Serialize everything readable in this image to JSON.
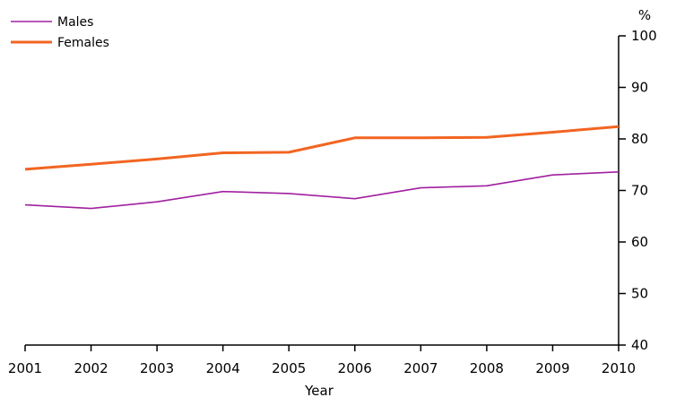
{
  "chart_data": {
    "type": "line",
    "title": "",
    "xlabel": "Year",
    "ylabel": "%",
    "x": [
      "2001",
      "2002",
      "2003",
      "2004",
      "2005",
      "2006",
      "2007",
      "2008",
      "2009",
      "2010"
    ],
    "ylim": [
      40,
      100
    ],
    "yticks": [
      "40",
      "50",
      "60",
      "70",
      "80",
      "90",
      "100"
    ],
    "y_axis_side": "right",
    "grid": false,
    "legend_position": "top-left",
    "series": [
      {
        "name": "Males",
        "color": "#A020A0",
        "values": [
          67.2,
          66.5,
          67.8,
          69.8,
          69.4,
          68.4,
          70.5,
          70.9,
          73.0,
          73.6
        ]
      },
      {
        "name": "Females",
        "color": "#F26522",
        "values": [
          74.1,
          75.1,
          76.1,
          77.3,
          77.4,
          80.2,
          80.2,
          80.3,
          81.3,
          82.4
        ]
      }
    ]
  }
}
